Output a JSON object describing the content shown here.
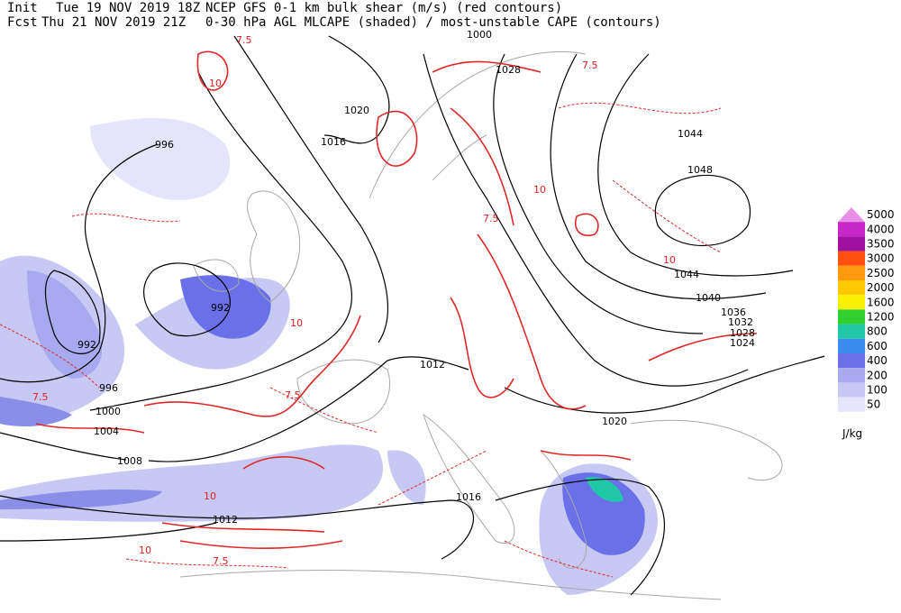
{
  "header": {
    "init_label": "Init",
    "init_time": "Tue 19 NOV 2019 18Z",
    "title_1": "NCEP GFS 0-1 km bulk shear (m/s) (red contours)",
    "fcst_label": "Fcst",
    "fcst_time": "Thu 21 NOV 2019 21Z",
    "title_2": "0-30 hPa AGL MLCAPE (shaded) / most-unstable CAPE (contours)"
  },
  "legend": {
    "unit": "J/kg",
    "levels": [
      {
        "label": "5000",
        "color": "#e890e8"
      },
      {
        "label": "4000",
        "color": "#c828c8"
      },
      {
        "label": "3500",
        "color": "#a010a0"
      },
      {
        "label": "3000",
        "color": "#ff5010"
      },
      {
        "label": "2500",
        "color": "#ff9a10"
      },
      {
        "label": "2000",
        "color": "#ffc800"
      },
      {
        "label": "1600",
        "color": "#f8f000"
      },
      {
        "label": "1200",
        "color": "#30d030"
      },
      {
        "label": "800",
        "color": "#20c8a8"
      },
      {
        "label": "600",
        "color": "#3c8cf0"
      },
      {
        "label": "400",
        "color": "#6a70e8"
      },
      {
        "label": "200",
        "color": "#a8aaf0"
      },
      {
        "label": "100",
        "color": "#c8c8f4"
      },
      {
        "label": "50",
        "color": "#e4e4fa"
      }
    ]
  },
  "map": {
    "isobar_labels": [
      "1000",
      "1028",
      "1020",
      "1016",
      "1044",
      "1048",
      "996",
      "992",
      "992",
      "996",
      "1000",
      "1004",
      "1008",
      "1012",
      "1016",
      "1012",
      "1044",
      "1040",
      "1036",
      "1032",
      "1028",
      "1024",
      "1020"
    ],
    "shear_labels": [
      "7.5",
      "10",
      "7.5",
      "10",
      "7.5",
      "10",
      "7.5",
      "10",
      "7.5",
      "10",
      "7.5",
      "10"
    ]
  }
}
